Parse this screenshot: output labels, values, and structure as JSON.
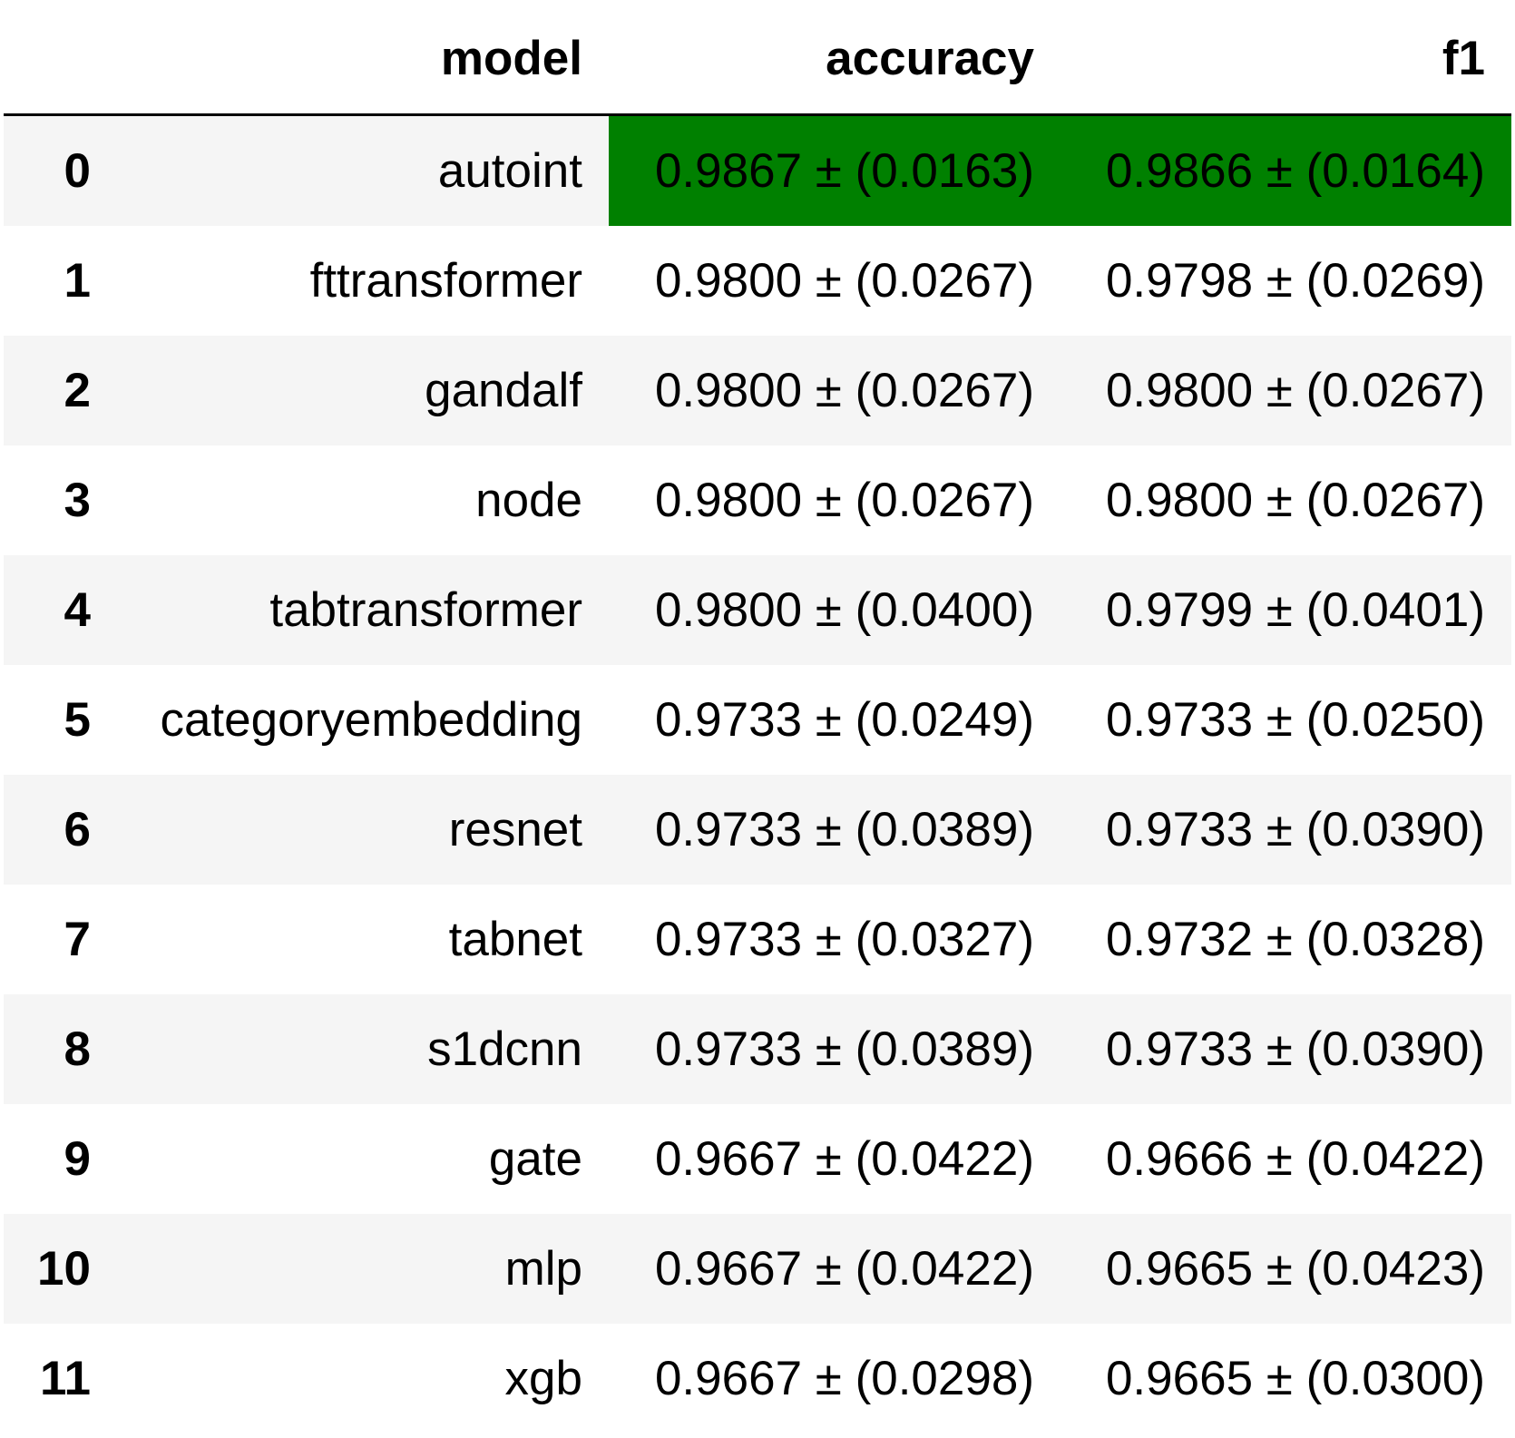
{
  "table": {
    "headers": {
      "index": "",
      "model": "model",
      "accuracy": "accuracy",
      "f1": "f1"
    },
    "highlight_color": "#008000",
    "rows": [
      {
        "index": "0",
        "model": "autoint",
        "accuracy": "0.9867 ± (0.0163)",
        "f1": "0.9866 ± (0.0164)",
        "highlight": true
      },
      {
        "index": "1",
        "model": "fttransformer",
        "accuracy": "0.9800 ± (0.0267)",
        "f1": "0.9798 ± (0.0269)",
        "highlight": false
      },
      {
        "index": "2",
        "model": "gandalf",
        "accuracy": "0.9800 ± (0.0267)",
        "f1": "0.9800 ± (0.0267)",
        "highlight": false
      },
      {
        "index": "3",
        "model": "node",
        "accuracy": "0.9800 ± (0.0267)",
        "f1": "0.9800 ± (0.0267)",
        "highlight": false
      },
      {
        "index": "4",
        "model": "tabtransformer",
        "accuracy": "0.9800 ± (0.0400)",
        "f1": "0.9799 ± (0.0401)",
        "highlight": false
      },
      {
        "index": "5",
        "model": "categoryembedding",
        "accuracy": "0.9733 ± (0.0249)",
        "f1": "0.9733 ± (0.0250)",
        "highlight": false
      },
      {
        "index": "6",
        "model": "resnet",
        "accuracy": "0.9733 ± (0.0389)",
        "f1": "0.9733 ± (0.0390)",
        "highlight": false
      },
      {
        "index": "7",
        "model": "tabnet",
        "accuracy": "0.9733 ± (0.0327)",
        "f1": "0.9732 ± (0.0328)",
        "highlight": false
      },
      {
        "index": "8",
        "model": "s1dcnn",
        "accuracy": "0.9733 ± (0.0389)",
        "f1": "0.9733 ± (0.0390)",
        "highlight": false
      },
      {
        "index": "9",
        "model": "gate",
        "accuracy": "0.9667 ± (0.0422)",
        "f1": "0.9666 ± (0.0422)",
        "highlight": false
      },
      {
        "index": "10",
        "model": "mlp",
        "accuracy": "0.9667 ± (0.0422)",
        "f1": "0.9665 ± (0.0423)",
        "highlight": false
      },
      {
        "index": "11",
        "model": "xgb",
        "accuracy": "0.9667 ± (0.0298)",
        "f1": "0.9665 ± (0.0300)",
        "highlight": false
      }
    ]
  }
}
